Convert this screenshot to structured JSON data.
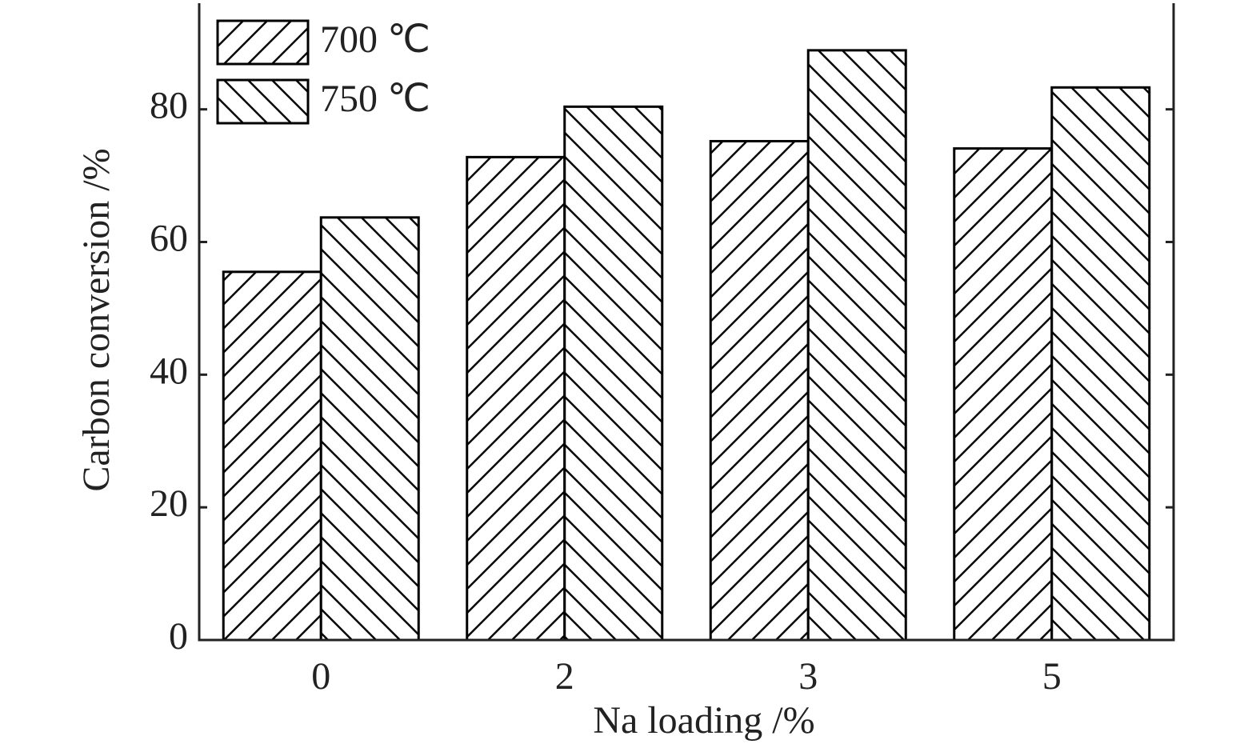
{
  "chart_data": {
    "type": "bar",
    "xlabel": "Na loading /%",
    "ylabel": "Carbon conversion /%",
    "categories": [
      "0",
      "2",
      "3",
      "5"
    ],
    "series": [
      {
        "name": "700 ℃",
        "color": "#000000",
        "hatch": "/",
        "values": [
          55.5,
          72.8,
          75.2,
          74.1
        ]
      },
      {
        "name": "750 ℃",
        "color": "#000000",
        "hatch": "\\",
        "values": [
          63.7,
          80.4,
          88.9,
          83.3
        ]
      }
    ],
    "ylim": [
      0,
      96
    ],
    "yticks": [
      0,
      20,
      40,
      60,
      80
    ],
    "grid": false,
    "legend": "upper left"
  }
}
